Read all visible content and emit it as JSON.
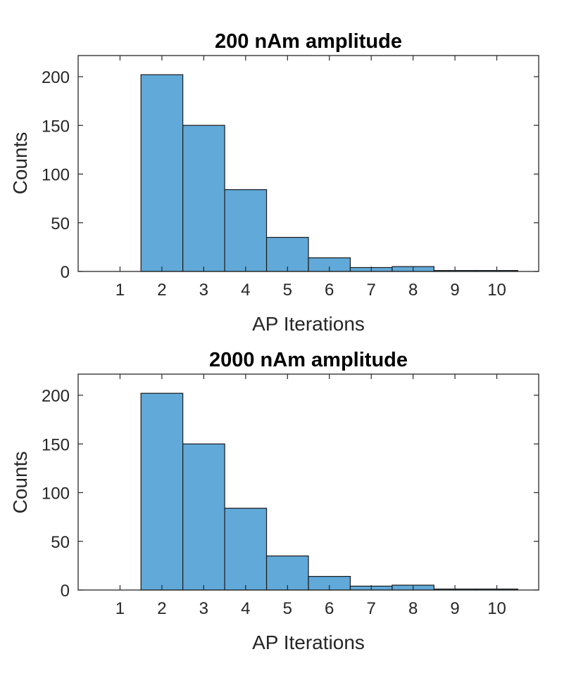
{
  "colors": {
    "bar_fill": "#61a9d9",
    "bar_edge": "#1a1a1a",
    "axis": "#262626"
  },
  "chart_data": [
    {
      "type": "bar",
      "title": "200 nAm amplitude",
      "xlabel": "AP Iterations",
      "ylabel": "Counts",
      "categories": [
        "1",
        "2",
        "3",
        "4",
        "5",
        "6",
        "7",
        "8",
        "9",
        "10"
      ],
      "values": [
        0,
        202,
        150,
        84,
        35,
        14,
        4,
        5,
        1,
        1
      ],
      "xlim": [
        0,
        11
      ],
      "ylim": [
        0,
        200
      ],
      "yticks": [
        "0",
        "50",
        "100",
        "150",
        "200"
      ],
      "grid": false,
      "box": true
    },
    {
      "type": "bar",
      "title": "2000 nAm amplitude",
      "xlabel": "AP Iterations",
      "ylabel": "Counts",
      "categories": [
        "1",
        "2",
        "3",
        "4",
        "5",
        "6",
        "7",
        "8",
        "9",
        "10"
      ],
      "values": [
        0,
        202,
        150,
        84,
        35,
        14,
        4,
        5,
        1,
        1
      ],
      "xlim": [
        0,
        11
      ],
      "ylim": [
        0,
        200
      ],
      "yticks": [
        "0",
        "50",
        "100",
        "150",
        "200"
      ],
      "grid": false,
      "box": true
    }
  ]
}
